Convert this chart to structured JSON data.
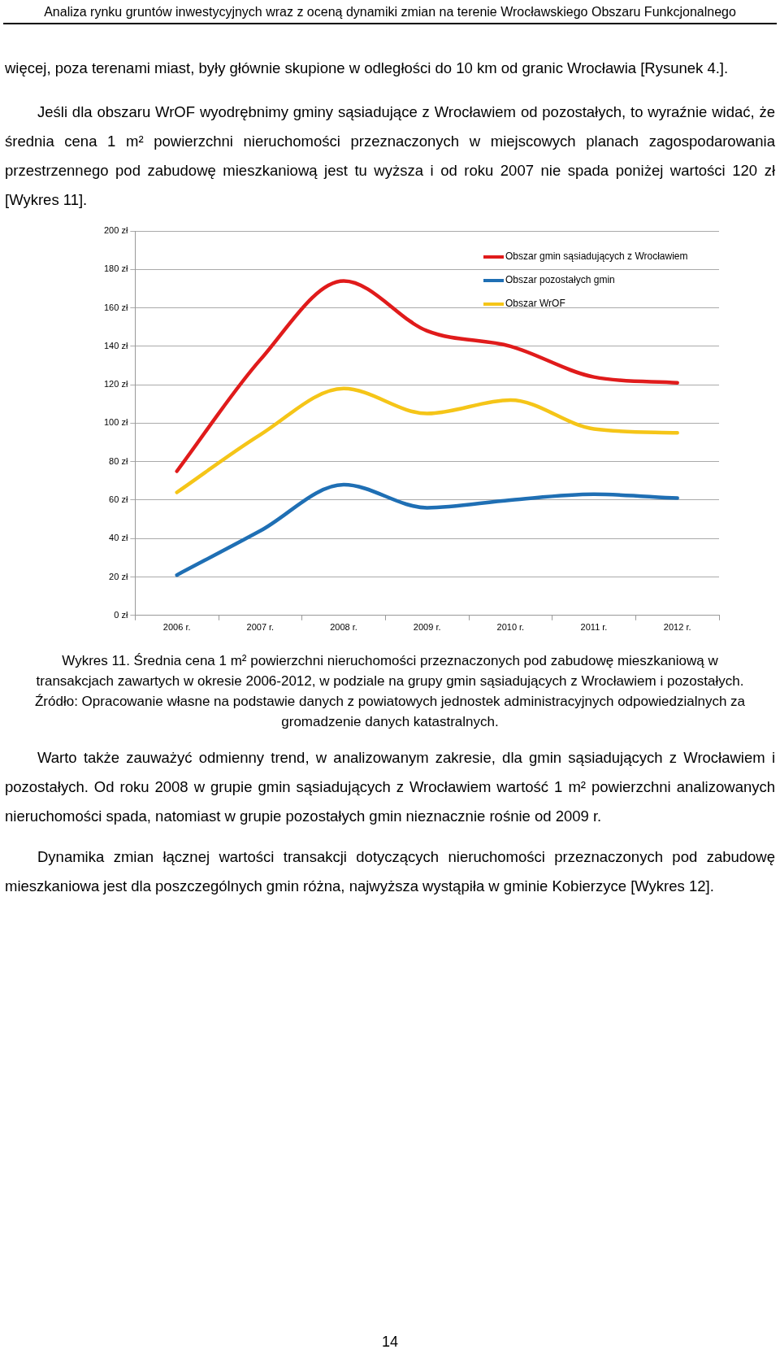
{
  "chart_data": {
    "type": "line",
    "title": "Wykres 11. Średnia cena 1 m² powierzchni nieruchomości przeznaczonych pod zabudowę mieszkaniową w transakcjach zawartych w okresie 2006-2012, w podziale na grupy gmin sąsiadujących z Wrocławiem i pozostałych. Źródło: Opracowanie własne na podstawie danych z powiatowych jednostek administracyjnych odpowiedzialnych za gromadzenie danych katastralnych.",
    "annotations": [
      "Analiza rynku gruntów inwestycyjnych wraz z oceną dynamiki zmian na terenie Wrocławskiego Obszaru Funkcjonalnego",
      "więcej, poza terenami miast, były głównie skupione w odległości do 10 km od granic Wrocławia [Rysunek 4.].",
      "Jeśli dla obszaru WrOF wyodrębnimy gminy sąsiadujące z Wrocławiem od pozostałych, to wyraźnie widać, że średnia cena 1 m² powierzchni nieruchomości przeznaczonych w miejscowych planach zagospodarowania przestrzennego pod zabudowę mieszkaniową jest tu wyższa i od roku 2007 nie spada poniżej wartości 120 zł [Wykres 11].",
      "Warto także zauważyć odmienny trend, w analizowanym zakresie, dla gmin sąsiadujących z Wrocławiem i pozostałych. Od roku 2008 w grupie gmin sąsiadujących z Wrocławiem wartość 1 m² powierzchni analizowanych nieruchomości spada, natomiast w grupie pozostałych gmin nieznacznie rośnie od 2009 r.",
      "Dynamika zmian łącznej wartości transakcji dotyczących nieruchomości przeznaczonych pod zabudowę mieszkaniowa jest dla poszczególnych gmin różna, najwyższa wystąpiła w gminie Kobierzyce [Wykres 12].",
      "14"
    ],
    "categories": [
      "2006 r.",
      "2007 r.",
      "2008 r.",
      "2009 r.",
      "2010 r.",
      "2011 r.",
      "2012 r."
    ],
    "series": [
      {
        "name": "Obszar gmin sąsiadujących z Wrocławiem",
        "color": "#e01b1b",
        "values": [
          75,
          133,
          174,
          148,
          140,
          124,
          121
        ]
      },
      {
        "name": "Obszar pozostałych gmin",
        "color": "#1f6fb4",
        "values": [
          21,
          44,
          68,
          56,
          60,
          63,
          61
        ]
      },
      {
        "name": "Obszar WrOF",
        "color": "#f5c518",
        "values": [
          64,
          94,
          118,
          105,
          112,
          97,
          95
        ]
      }
    ],
    "ylim": [
      0,
      200
    ],
    "yticks": [
      {
        "value": 0,
        "label": "0 zł"
      },
      {
        "value": 20,
        "label": "20 zł"
      },
      {
        "value": 40,
        "label": "40 zł"
      },
      {
        "value": 60,
        "label": "60 zł"
      },
      {
        "value": 80,
        "label": "80 zł"
      },
      {
        "value": 100,
        "label": "100 zł"
      },
      {
        "value": 120,
        "label": "120 zł"
      },
      {
        "value": 140,
        "label": "140 zł"
      },
      {
        "value": 160,
        "label": "160 zł"
      },
      {
        "value": 180,
        "label": "180 zł"
      },
      {
        "value": 200,
        "label": "200 zł"
      }
    ],
    "grid": "y",
    "legend": "top right",
    "marker": "none",
    "line_style": "solid"
  }
}
